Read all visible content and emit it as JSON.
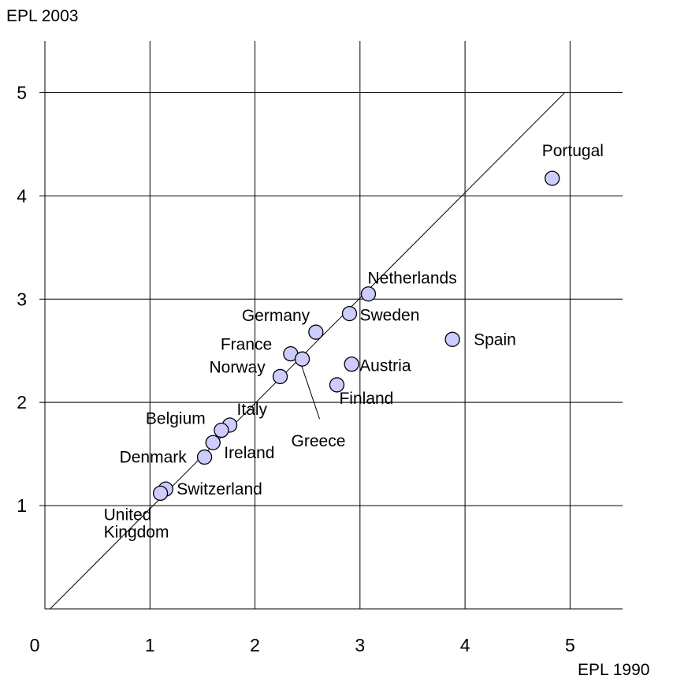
{
  "chart_data": {
    "type": "scatter",
    "ylabel": "EPL 2003",
    "xlabel": "EPL 1990",
    "xlim": [
      0,
      5.5
    ],
    "ylim": [
      0,
      5.5
    ],
    "x_ticks": [
      "0",
      "1",
      "2",
      "3",
      "4",
      "5"
    ],
    "y_ticks": [
      "1",
      "2",
      "3",
      "4",
      "5"
    ],
    "grid": true,
    "reference_line": "45-degree line",
    "marker_color": "#ccccff",
    "marker_edge_color": "#000000",
    "points": [
      {
        "label": "Portugal",
        "x": 4.83,
        "y": 4.17
      },
      {
        "label": "Netherlands",
        "x": 3.08,
        "y": 3.05
      },
      {
        "label": "Sweden",
        "x": 2.9,
        "y": 2.86
      },
      {
        "label": "Spain",
        "x": 3.88,
        "y": 2.61
      },
      {
        "label": "Germany",
        "x": 2.58,
        "y": 2.68
      },
      {
        "label": "France",
        "x": 2.34,
        "y": 2.47
      },
      {
        "label": "Greece",
        "x": 2.45,
        "y": 2.42
      },
      {
        "label": "Norway",
        "x": 2.24,
        "y": 2.25
      },
      {
        "label": "Austria",
        "x": 2.92,
        "y": 2.37
      },
      {
        "label": "Finland",
        "x": 2.78,
        "y": 2.17
      },
      {
        "label": "Italy",
        "x": 1.76,
        "y": 1.78
      },
      {
        "label": "Belgium",
        "x": 1.68,
        "y": 1.73
      },
      {
        "label": "Ireland",
        "x": 1.6,
        "y": 1.61
      },
      {
        "label": "Denmark",
        "x": 1.52,
        "y": 1.47
      },
      {
        "label": "Switzerland",
        "x": 1.15,
        "y": 1.16
      },
      {
        "label": "United Kingdom",
        "x": 1.1,
        "y": 1.12
      }
    ]
  }
}
